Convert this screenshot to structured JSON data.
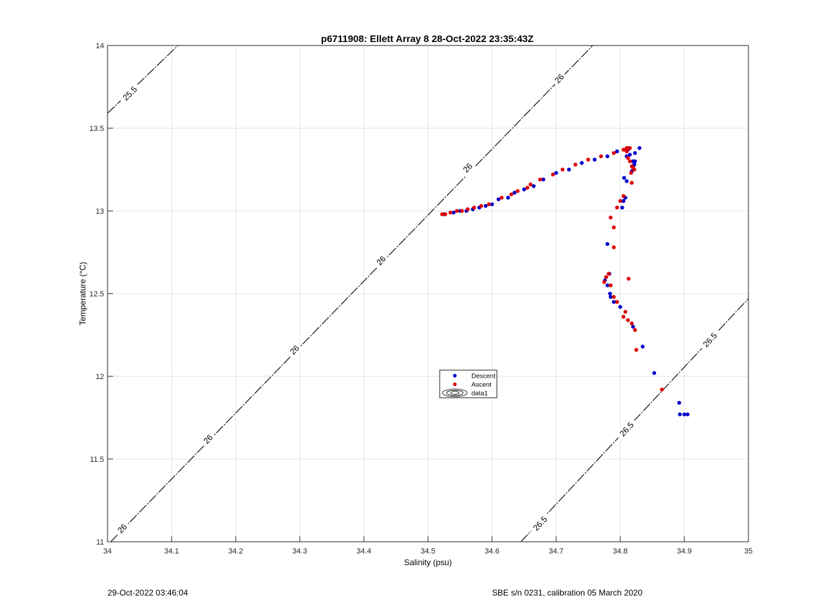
{
  "chart_data": {
    "type": "scatter",
    "title": "p6711908: Ellett Array 8 28-Oct-2022 23:35:43Z",
    "xlabel": "Salinity (psu)",
    "ylabel": "Temperature (°C)",
    "xlim": [
      34,
      35
    ],
    "ylim": [
      11,
      14
    ],
    "grid": true,
    "xticks": [
      "34",
      "34.1",
      "34.2",
      "34.3",
      "34.4",
      "34.5",
      "34.6",
      "34.7",
      "34.8",
      "34.9",
      "35"
    ],
    "yticks": [
      "11",
      "11.5",
      "12",
      "12.5",
      "13",
      "13.5",
      "14"
    ],
    "legend": {
      "placement": "center",
      "entries": [
        {
          "label": "Descent",
          "color": "#0000cc",
          "kind": "dot"
        },
        {
          "label": "Ascent",
          "color": "#dd0000",
          "kind": "dot"
        },
        {
          "label": "data1",
          "color": "#000000",
          "kind": "contour"
        }
      ]
    },
    "contours": [
      {
        "sigma": "25.5",
        "points": [
          [
            34,
            13.59
          ],
          [
            34.11,
            14
          ]
        ],
        "labels": [
          {
            "text": "25.5",
            "at": [
              34.035,
              13.71
            ]
          }
        ]
      },
      {
        "sigma": "26",
        "points": [
          [
            34.005,
            11
          ],
          [
            34.757,
            14
          ]
        ],
        "labels": [
          {
            "text": "26",
            "at": [
              34.023,
              11.08
            ]
          },
          {
            "text": "26",
            "at": [
              34.157,
              11.62
            ]
          },
          {
            "text": "26",
            "at": [
              34.292,
              12.16
            ]
          },
          {
            "text": "26",
            "at": [
              34.427,
              12.7
            ]
          },
          {
            "text": "26",
            "at": [
              34.562,
              13.26
            ]
          },
          {
            "text": "26",
            "at": [
              34.705,
              13.8
            ]
          }
        ]
      },
      {
        "sigma": "26.5",
        "points": [
          [
            34.645,
            11
          ],
          [
            35,
            12.47
          ]
        ],
        "labels": [
          {
            "text": "26.5",
            "at": [
              34.675,
              11.11
            ]
          },
          {
            "text": "26.5",
            "at": [
              34.81,
              11.68
            ]
          },
          {
            "text": "26.5",
            "at": [
              34.94,
              12.22
            ]
          }
        ]
      }
    ],
    "series": [
      {
        "name": "Descent",
        "color": "#0000cc",
        "x": [
          34.83,
          34.823,
          34.82,
          34.815,
          34.812,
          34.81,
          34.822,
          34.818,
          34.823,
          34.82,
          34.82,
          34.81,
          34.806,
          34.808,
          34.805,
          34.803,
          34.78,
          34.783,
          34.778,
          34.776,
          34.78,
          34.784,
          34.785,
          34.79,
          34.8,
          34.82,
          34.835,
          34.853,
          34.892,
          34.9,
          34.905,
          34.893,
          34.525,
          34.54,
          34.55,
          34.56,
          34.57,
          34.58,
          34.59,
          34.6,
          34.61,
          34.625,
          34.635,
          34.65,
          34.665,
          34.68,
          34.7,
          34.72,
          34.74,
          34.76,
          34.78,
          34.795
        ],
        "y": [
          13.38,
          13.35,
          13.3,
          13.34,
          13.37,
          13.33,
          13.28,
          13.24,
          13.3,
          13.27,
          13.27,
          13.18,
          13.2,
          13.08,
          13.06,
          13.02,
          12.8,
          12.62,
          12.6,
          12.58,
          12.55,
          12.5,
          12.48,
          12.45,
          12.42,
          12.3,
          12.18,
          12.02,
          11.84,
          11.77,
          11.77,
          11.77,
          12.98,
          12.99,
          13.0,
          13.0,
          13.01,
          13.02,
          13.03,
          13.04,
          13.07,
          13.08,
          13.11,
          13.13,
          13.15,
          13.19,
          13.23,
          13.25,
          13.29,
          13.31,
          13.33,
          13.36
        ]
      },
      {
        "name": "Ascent",
        "color": "#dd0000",
        "x": [
          34.522,
          34.527,
          34.535,
          34.545,
          34.553,
          34.562,
          34.572,
          34.583,
          34.595,
          34.615,
          34.63,
          34.64,
          34.655,
          34.66,
          34.675,
          34.695,
          34.71,
          34.73,
          34.75,
          34.77,
          34.79,
          34.805,
          34.81,
          34.812,
          34.815,
          34.81,
          34.808,
          34.812,
          34.815,
          34.818,
          34.82,
          34.817,
          34.822,
          34.818,
          34.805,
          34.8,
          34.795,
          34.79,
          34.785,
          34.79,
          34.782,
          34.778,
          34.775,
          34.785,
          34.79,
          34.795,
          34.813,
          34.808,
          34.805,
          34.812,
          34.818,
          34.823,
          34.825,
          34.865
        ],
        "y": [
          12.98,
          12.98,
          12.99,
          13.0,
          13.0,
          13.01,
          13.02,
          13.03,
          13.04,
          13.08,
          13.1,
          13.12,
          13.14,
          13.16,
          13.19,
          13.22,
          13.25,
          13.28,
          13.31,
          13.33,
          13.35,
          13.37,
          13.38,
          13.38,
          13.38,
          13.36,
          13.37,
          13.32,
          13.3,
          13.27,
          13.26,
          13.23,
          13.25,
          13.17,
          13.09,
          13.06,
          13.02,
          12.9,
          12.96,
          12.78,
          12.62,
          12.6,
          12.57,
          12.55,
          12.48,
          12.45,
          12.59,
          12.39,
          12.36,
          12.34,
          12.32,
          12.28,
          12.16,
          11.92
        ]
      }
    ]
  },
  "footer": {
    "left": "29-Oct-2022 03:46:04",
    "right": "SBE s/n 0231, calibration 05 March 2020"
  }
}
